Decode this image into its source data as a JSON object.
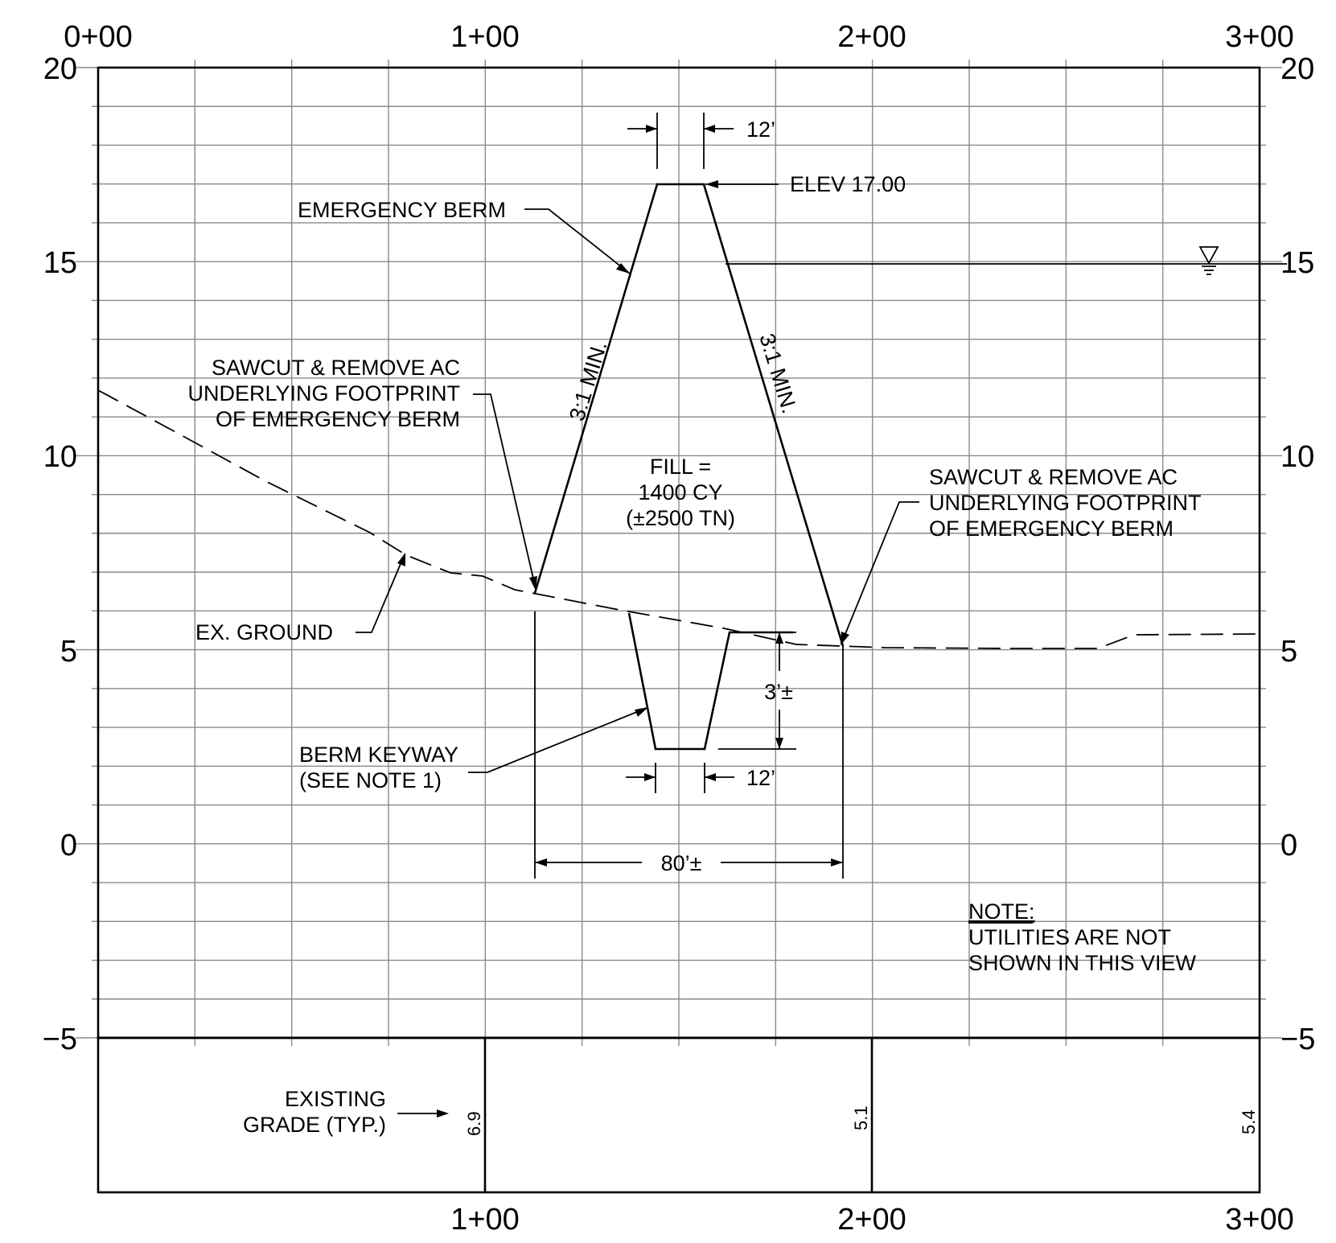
{
  "axes": {
    "stations_top": [
      "0+00",
      "1+00",
      "2+00",
      "3+00"
    ],
    "stations_bottom": [
      "1+00",
      "2+00",
      "3+00"
    ],
    "elevations_left": [
      "20",
      "15",
      "10",
      "5",
      "0",
      "−5"
    ],
    "elevations_right": [
      "20",
      "15",
      "10",
      "5",
      "0",
      "−5"
    ]
  },
  "labels": {
    "emergency_berm": "EMERGENCY BERM",
    "elev": "ELEV 17.00",
    "top_width": "12’",
    "slope_left": "3:1 MIN.",
    "slope_right": "3:1 MIN.",
    "sawcut_left": [
      "SAWCUT & REMOVE AC",
      "UNDERLYING FOOTPRINT",
      "OF EMERGENCY BERM"
    ],
    "sawcut_right": [
      "SAWCUT & REMOVE AC",
      "UNDERLYING FOOTPRINT",
      "OF EMERGENCY BERM"
    ],
    "fill": [
      "FILL =",
      "1400 CY",
      "(±2500 TN)"
    ],
    "ex_ground": "EX. GROUND",
    "keyway_depth": "3’±",
    "berm_keyway": [
      "BERM KEYWAY",
      "(SEE NOTE 1)"
    ],
    "keyway_width": "12’",
    "base_width": "80’±",
    "note_title": "NOTE:",
    "note_body": [
      "UTILITIES ARE NOT",
      "SHOWN IN THIS VIEW"
    ],
    "existing_grade": [
      "EXISTING",
      "GRADE (TYP.)"
    ],
    "water_symbol": "∇"
  },
  "grade_values": [
    "6.9",
    "5.1",
    "5.4"
  ]
}
